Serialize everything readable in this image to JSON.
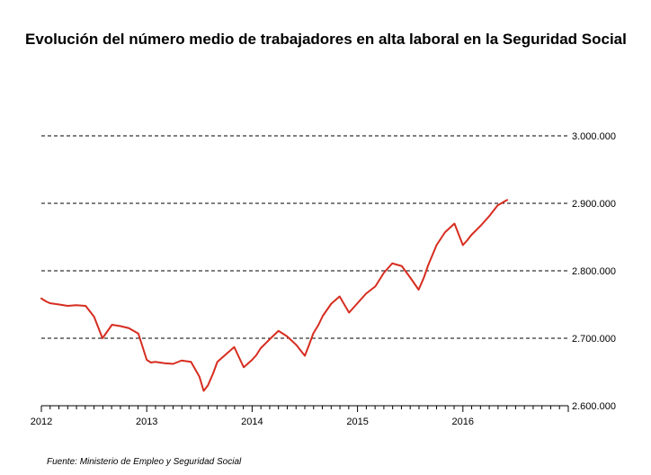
{
  "title": "Evolución del número medio de trabajadores en alta laboral en la Seguridad Social",
  "source": "Fuente: Ministerio de Empleo y Seguridad Social",
  "chart_data": {
    "type": "line",
    "title": "Evolución del número medio de trabajadores en alta laboral en la Seguridad Social",
    "xlabel": "",
    "ylabel": "",
    "xlim": [
      2012.0,
      2017.0
    ],
    "ylim": [
      2600000,
      3000000
    ],
    "x_ticks": [
      2012,
      2013,
      2014,
      2015,
      2016
    ],
    "x_tick_labels": [
      "2012",
      "2013",
      "2014",
      "2015",
      "2016"
    ],
    "y_ticks": [
      2600000,
      2700000,
      2800000,
      2900000,
      3000000
    ],
    "y_tick_labels": [
      "2.600.000",
      "2.700.000",
      "2.800.000",
      "2.900.000",
      "3.000.000"
    ],
    "grid": "dashed horizontal",
    "y_axis_side": "right",
    "line_color": "#d62d20",
    "series": [
      {
        "x": [
          2012.0,
          2012.04,
          2012.08,
          2012.17,
          2012.25,
          2012.33,
          2012.42,
          2012.5,
          2012.58,
          2012.67,
          2012.75,
          2012.83,
          2012.92,
          2013.0,
          2013.04,
          2013.08,
          2013.17,
          2013.25,
          2013.33,
          2013.42,
          2013.5,
          2013.54,
          2013.58,
          2013.63,
          2013.67,
          2013.75,
          2013.83,
          2013.92,
          2014.0,
          2014.04,
          2014.08,
          2014.17,
          2014.25,
          2014.33,
          2014.42,
          2014.5,
          2014.54,
          2014.58,
          2014.63,
          2014.67,
          2014.75,
          2014.83,
          2014.92,
          2015.0,
          2015.08,
          2015.17,
          2015.25,
          2015.33,
          2015.42,
          2015.5,
          2015.58,
          2015.63,
          2015.67,
          2015.75,
          2015.83,
          2015.92,
          2016.0,
          2016.04,
          2016.08,
          2016.17,
          2016.25,
          2016.33,
          2016.42
        ],
        "values": [
          2759000,
          2755000,
          2752000,
          2750000,
          2748000,
          2749000,
          2748000,
          2732000,
          2700000,
          2720000,
          2718000,
          2715000,
          2707000,
          2668000,
          2664000,
          2665000,
          2663000,
          2662000,
          2667000,
          2665000,
          2643000,
          2622000,
          2630000,
          2648000,
          2665000,
          2676000,
          2687000,
          2657000,
          2668000,
          2675000,
          2685000,
          2699000,
          2711000,
          2703000,
          2690000,
          2674000,
          2690000,
          2707000,
          2720000,
          2733000,
          2751000,
          2762000,
          2738000,
          2752000,
          2766000,
          2777000,
          2797000,
          2811000,
          2807000,
          2790000,
          2772000,
          2790000,
          2808000,
          2838000,
          2857000,
          2870000,
          2838000,
          2845000,
          2853000,
          2867000,
          2881000,
          2897000,
          2905000
        ]
      }
    ]
  }
}
